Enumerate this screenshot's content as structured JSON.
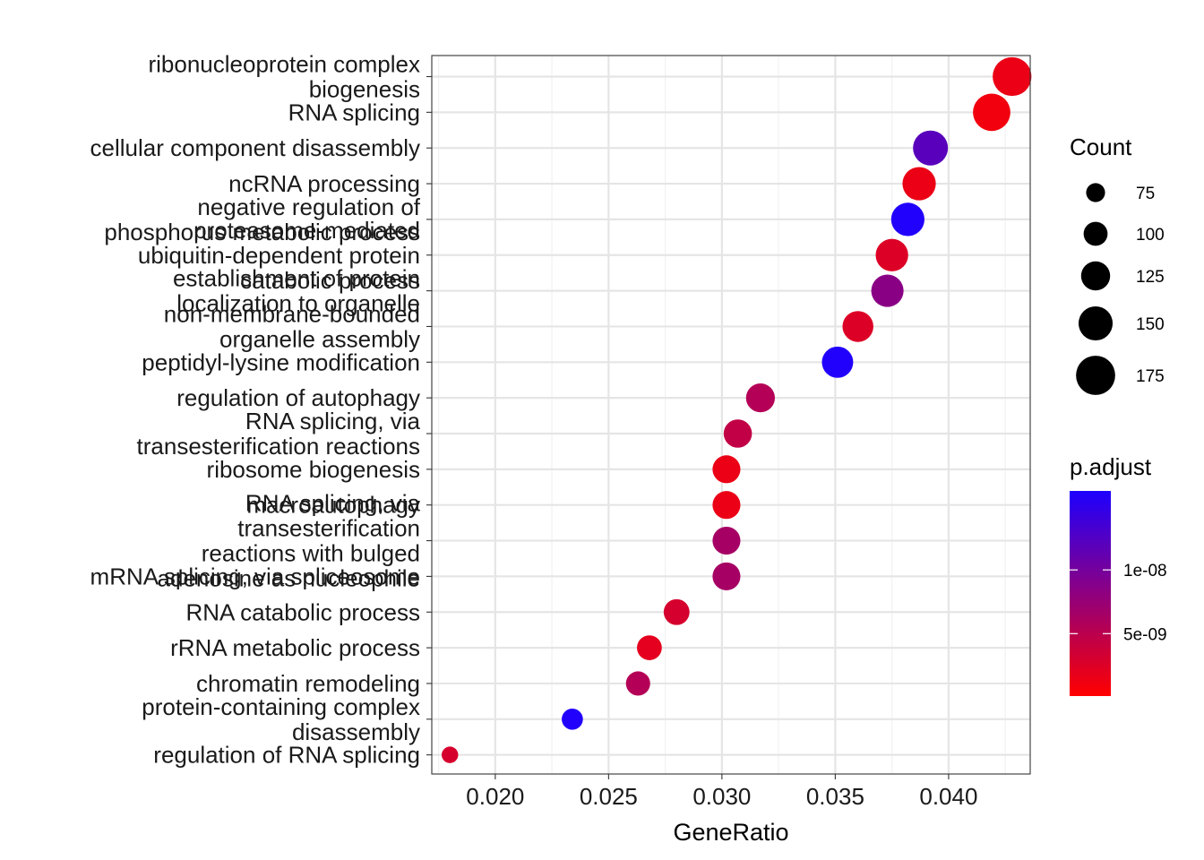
{
  "chart_data": {
    "type": "scatter",
    "xlabel": "GeneRatio",
    "ylabel": "",
    "xlim": [
      0.0172,
      0.0436
    ],
    "xticks": [
      0.02,
      0.025,
      0.03,
      0.035,
      0.04
    ],
    "xtick_labels": [
      "0.020",
      "0.025",
      "0.030",
      "0.035",
      "0.040"
    ],
    "grid": true,
    "categories": [
      [
        "ribonucleoprotein complex",
        "biogenesis"
      ],
      [
        "RNA splicing"
      ],
      [
        "cellular component disassembly"
      ],
      [
        "ncRNA processing"
      ],
      [
        "negative regulation of",
        "phosphorus metabolic process"
      ],
      [
        "proteasome-mediated",
        "ubiquitin-dependent protein",
        "catabolic process"
      ],
      [
        "establishment of protein",
        "localization to organelle"
      ],
      [
        "non-membrane-bounded",
        "organelle assembly"
      ],
      [
        "peptidyl-lysine modification"
      ],
      [
        "regulation of autophagy"
      ],
      [
        "RNA splicing, via",
        "transesterification reactions"
      ],
      [
        "ribosome biogenesis"
      ],
      [
        "macroautophagy"
      ],
      [
        "RNA splicing, via",
        "transesterification",
        "reactions with bulged",
        "adenosine as nucleophile"
      ],
      [
        "mRNA splicing, via spliceosome"
      ],
      [
        "RNA catabolic process"
      ],
      [
        "rRNA metabolic process"
      ],
      [
        "chromatin remodeling"
      ],
      [
        "protein-containing complex",
        "disassembly"
      ],
      [
        "regulation of RNA splicing"
      ]
    ],
    "x": [
      0.0428,
      0.0419,
      0.0392,
      0.0387,
      0.0382,
      0.0375,
      0.0373,
      0.036,
      0.0351,
      0.0317,
      0.0307,
      0.0302,
      0.0302,
      0.0302,
      0.0302,
      0.028,
      0.0268,
      0.0263,
      0.0234,
      0.018
    ],
    "count": [
      182,
      175,
      163,
      155,
      155,
      151,
      150,
      143,
      145,
      133,
      130,
      128,
      128,
      128,
      128,
      118,
      113,
      110,
      95,
      72
    ],
    "p_adjust": [
      1.5e-09,
      1e-09,
      1.2e-08,
      1.5e-09,
      1.6e-08,
      2.5e-09,
      8.5e-09,
      2.5e-09,
      1.6e-08,
      5.5e-09,
      4.5e-09,
      1.5e-09,
      1.5e-09,
      6.5e-09,
      6.5e-09,
      3e-09,
      2e-09,
      5.5e-09,
      1.6e-08,
      3e-09
    ],
    "legend": {
      "size": {
        "title": "Count",
        "values": [
          75,
          100,
          125,
          150,
          175
        ],
        "labels": [
          "75",
          "100",
          "125",
          "150",
          "175"
        ]
      },
      "color": {
        "title": "p.adjust",
        "low_color": "#FF0000",
        "high_color": "#1E00FF",
        "range": [
          1e-10,
          1.62e-08
        ],
        "breaks": [
          1e-08,
          5e-09
        ],
        "labels": [
          "1e-08",
          "5e-09"
        ]
      }
    },
    "colors": {
      "panel_border": "#333333",
      "grid_major": "#e5e5e5",
      "grid_minor": "#f2f2f2",
      "tick": "#333333"
    }
  }
}
